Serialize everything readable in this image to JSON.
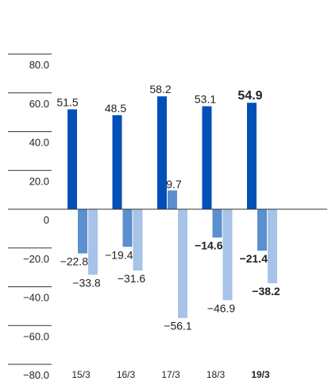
{
  "chart_data": {
    "type": "bar",
    "categories": [
      "15/3",
      "16/3",
      "17/3",
      "18/3",
      "19/3"
    ],
    "highlight_category": "19/3",
    "series": [
      {
        "values": [
          51.5,
          48.5,
          58.2,
          53.1,
          54.9
        ],
        "color": "#0050b8"
      },
      {
        "values": [
          -22.8,
          -19.4,
          9.7,
          -14.6,
          -21.4
        ],
        "color": "#5b8fd0"
      },
      {
        "values": [
          -33.8,
          -31.6,
          -56.1,
          -46.9,
          -38.2
        ],
        "color": "#a7c3e8"
      }
    ],
    "value_labels": [
      [
        "51.5",
        "48.5",
        "58.2",
        "53.1",
        "54.9"
      ],
      [
        "−22.8",
        "−19.4",
        "9.7",
        "−14.6",
        "−21.4"
      ],
      [
        "−33.8",
        "−31.6",
        "−56.1",
        "−46.9",
        "−38.2"
      ]
    ],
    "bold_labels": [
      [
        false,
        false,
        false,
        false,
        true
      ],
      [
        false,
        false,
        false,
        true,
        true
      ],
      [
        false,
        false,
        false,
        false,
        true
      ]
    ],
    "ylim": [
      -80,
      80
    ],
    "yticks": [
      80,
      60,
      40,
      20,
      0,
      -20,
      -40,
      -60,
      -80
    ],
    "ytick_labels": [
      "80.0",
      "60.0",
      "40.0",
      "20.0",
      "0",
      "−20.0",
      "−40.0",
      "−60.0",
      "−80.0"
    ],
    "grid": false,
    "legend": "none"
  }
}
